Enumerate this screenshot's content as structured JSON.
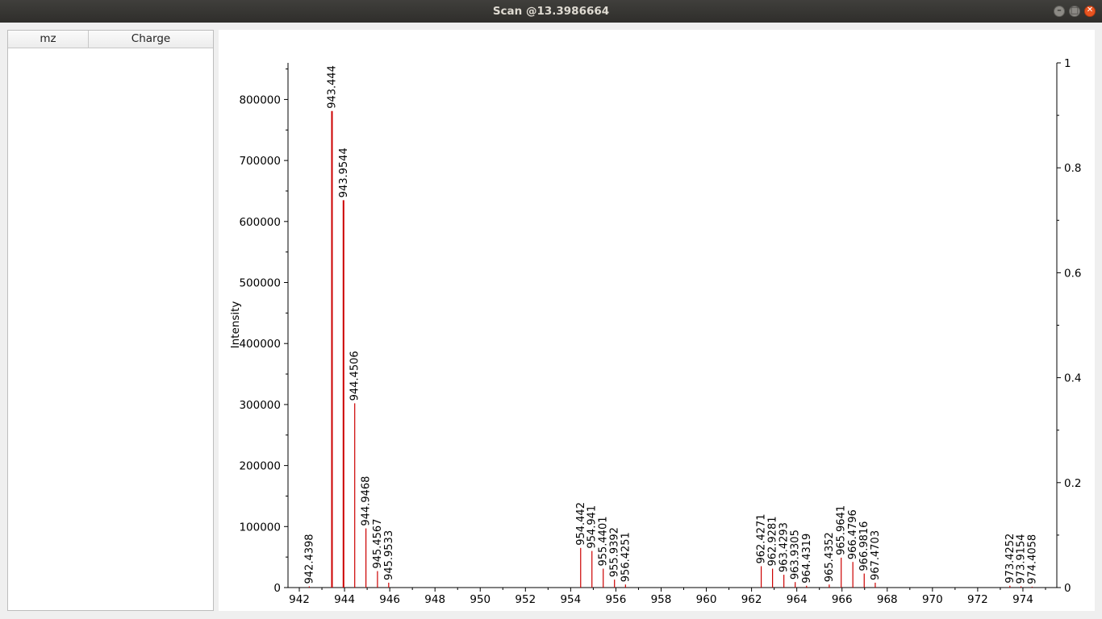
{
  "window": {
    "title": "Scan @13.3986664"
  },
  "peak_table": {
    "columns": [
      "mz",
      "Charge"
    ],
    "rows": []
  },
  "colors": {
    "peak": "#cc0000",
    "axis": "#000000"
  },
  "chart_data": {
    "type": "bar",
    "ylabel": "Intensity",
    "xlabel": "",
    "xlim": [
      941.5,
      975.5
    ],
    "ylim": [
      0,
      860000
    ],
    "y2lim": [
      0,
      1
    ],
    "x_ticks": [
      "942",
      "944",
      "946",
      "948",
      "950",
      "952",
      "954",
      "956",
      "958",
      "960",
      "962",
      "964",
      "966",
      "968",
      "970",
      "972",
      "974"
    ],
    "y_ticks": [
      "0",
      "100000",
      "200000",
      "300000",
      "400000",
      "500000",
      "600000",
      "700000",
      "800000"
    ],
    "y2_ticks": [
      "0",
      "0.2",
      "0.4",
      "0.6",
      "0.8",
      "1"
    ],
    "peaks": [
      {
        "mz": 942.4398,
        "label": "942.4398",
        "intensity": 2000
      },
      {
        "mz": 943.444,
        "label": "943.444",
        "intensity": 781000
      },
      {
        "mz": 943.9544,
        "label": "943.9544",
        "intensity": 635000
      },
      {
        "mz": 944.4506,
        "label": "944.4506",
        "intensity": 302000
      },
      {
        "mz": 944.9468,
        "label": "944.9468",
        "intensity": 97000
      },
      {
        "mz": 945.4567,
        "label": "945.4567",
        "intensity": 27000
      },
      {
        "mz": 945.9533,
        "label": "945.9533",
        "intensity": 8000
      },
      {
        "mz": 954.442,
        "label": "954.442",
        "intensity": 65000
      },
      {
        "mz": 954.941,
        "label": "954.941",
        "intensity": 60000
      },
      {
        "mz": 955.4401,
        "label": "955.4401",
        "intensity": 31000
      },
      {
        "mz": 955.9392,
        "label": "955.9392",
        "intensity": 13000
      },
      {
        "mz": 956.4251,
        "label": "956.4251",
        "intensity": 5000
      },
      {
        "mz": 962.4271,
        "label": "962.4271",
        "intensity": 35000
      },
      {
        "mz": 962.9281,
        "label": "962.9281",
        "intensity": 31000
      },
      {
        "mz": 963.4293,
        "label": "963.4293",
        "intensity": 21000
      },
      {
        "mz": 963.9305,
        "label": "963.9305",
        "intensity": 9000
      },
      {
        "mz": 964.4319,
        "label": "964.4319",
        "intensity": 3000
      },
      {
        "mz": 965.4352,
        "label": "965.4352",
        "intensity": 5000
      },
      {
        "mz": 965.9641,
        "label": "965.9641",
        "intensity": 49000
      },
      {
        "mz": 966.4796,
        "label": "966.4796",
        "intensity": 42000
      },
      {
        "mz": 966.9816,
        "label": "966.9816",
        "intensity": 23000
      },
      {
        "mz": 967.4703,
        "label": "967.4703",
        "intensity": 8000
      },
      {
        "mz": 973.4252,
        "label": "973.4252",
        "intensity": 3000
      },
      {
        "mz": 973.9154,
        "label": "973.9154",
        "intensity": 2000
      },
      {
        "mz": 974.4058,
        "label": "974.4058",
        "intensity": 1500
      }
    ]
  }
}
